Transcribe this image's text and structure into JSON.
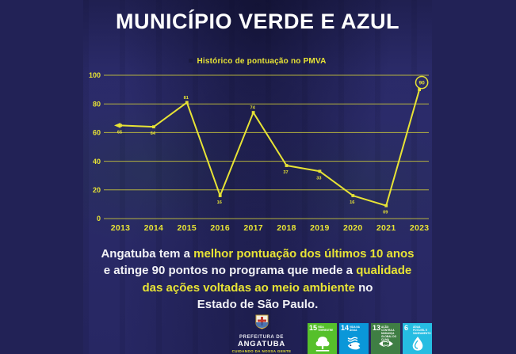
{
  "page": {
    "title": "MUNICÍPIO VERDE E AZUL"
  },
  "chart_data": {
    "type": "line",
    "title": "Histórico de pontuação no PMVA",
    "categories": [
      "2013",
      "2014",
      "2015",
      "2016",
      "2017",
      "2018",
      "2019",
      "2020",
      "2021",
      "2023"
    ],
    "values": [
      65,
      64,
      81,
      16,
      74,
      37,
      33,
      16,
      9,
      90
    ],
    "point_labels": [
      "65",
      "64",
      "81",
      "16",
      "74",
      "37",
      "33",
      "16",
      "09",
      "90"
    ],
    "point_label_positions": [
      "below",
      "below",
      "above",
      "below",
      "above",
      "below",
      "below",
      "below",
      "below",
      "circle"
    ],
    "highlight_index": 9,
    "ylim": [
      0,
      100
    ],
    "yticks": [
      0,
      20,
      40,
      60,
      80,
      100
    ],
    "grid": true,
    "legend_position": "top",
    "line_color": "#e7e335",
    "grid_color": "#cfcb3a",
    "legend_marker_color": "#1a1a44"
  },
  "caption": {
    "lines": [
      [
        {
          "t": "Angatuba tem a ",
          "c": "w"
        },
        {
          "t": "melhor pontuação dos últimos 10 anos",
          "c": "y"
        }
      ],
      [
        {
          "t": "e atinge 90 pontos no programa que mede a ",
          "c": "w"
        },
        {
          "t": "qualidade",
          "c": "y"
        }
      ],
      [
        {
          "t": "das ações voltadas ao meio ambiente",
          "c": "y"
        },
        {
          "t": " no",
          "c": "w"
        }
      ],
      [
        {
          "t": "Estado de São Paulo.",
          "c": "w"
        }
      ]
    ]
  },
  "footer": {
    "logo": {
      "line1": "PREFEITURA DE",
      "line2": "ANGATUBA",
      "tagline": "CUIDANDO DA NOSSA GENTE"
    },
    "sdg_tiles": [
      {
        "number": "15",
        "label": "Vida terrestre",
        "color": "#56C02B",
        "icon": "tree-icon"
      },
      {
        "number": "14",
        "label": "Vida na água",
        "color": "#0A97D9",
        "icon": "fish-icon"
      },
      {
        "number": "13",
        "label": "Ação contra a mudança global do clima",
        "color": "#3F7E44",
        "icon": "eye-globe-icon"
      },
      {
        "number": "6",
        "label": "Água potável e saneamento",
        "color": "#26BDE2",
        "icon": "water-drop-icon"
      }
    ]
  },
  "colors": {
    "background": "#222256",
    "panel": "#2b2b6a",
    "accent_yellow": "#e7e335",
    "text_white": "#f2f2f6"
  }
}
